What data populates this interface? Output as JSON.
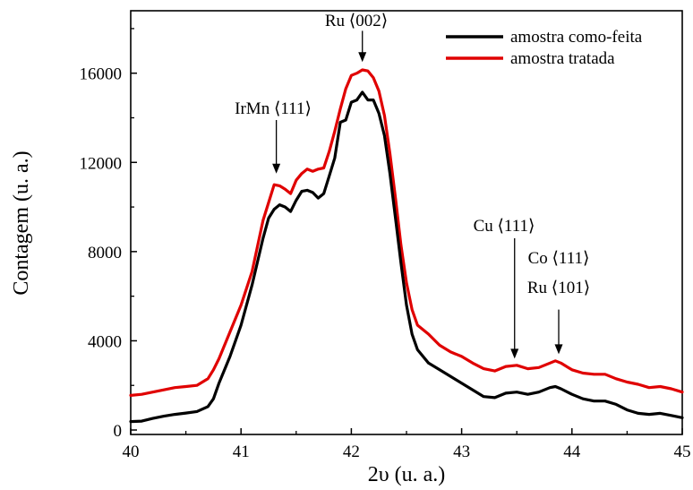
{
  "chart_data": {
    "type": "line",
    "title": "",
    "xlabel": "2υ (u. a.)",
    "ylabel": "Contagem (u. a.)",
    "xlim": [
      40,
      45
    ],
    "ylim": [
      -200,
      18800
    ],
    "x_ticks": [
      40,
      41,
      42,
      43,
      44,
      45
    ],
    "x_tick_labels": [
      "40",
      "41",
      "42",
      "43",
      "44",
      "45"
    ],
    "y_ticks": [
      0,
      4000,
      8000,
      12000,
      16000
    ],
    "y_tick_labels": [
      "0",
      "4000",
      "8000",
      "12000",
      "16000"
    ],
    "grid": false,
    "legend_position": "top-right",
    "series": [
      {
        "name": "amostra como-feita",
        "color": "#000000",
        "points": [
          [
            40.0,
            380
          ],
          [
            40.1,
            400
          ],
          [
            40.2,
            520
          ],
          [
            40.3,
            620
          ],
          [
            40.4,
            700
          ],
          [
            40.5,
            760
          ],
          [
            40.6,
            830
          ],
          [
            40.7,
            1050
          ],
          [
            40.75,
            1400
          ],
          [
            40.8,
            2100
          ],
          [
            40.9,
            3300
          ],
          [
            41.0,
            4700
          ],
          [
            41.1,
            6500
          ],
          [
            41.2,
            8600
          ],
          [
            41.25,
            9500
          ],
          [
            41.3,
            9900
          ],
          [
            41.35,
            10100
          ],
          [
            41.4,
            10000
          ],
          [
            41.45,
            9800
          ],
          [
            41.5,
            10300
          ],
          [
            41.55,
            10700
          ],
          [
            41.6,
            10750
          ],
          [
            41.65,
            10650
          ],
          [
            41.7,
            10400
          ],
          [
            41.75,
            10600
          ],
          [
            41.8,
            11400
          ],
          [
            41.85,
            12200
          ],
          [
            41.9,
            13800
          ],
          [
            41.95,
            13900
          ],
          [
            42.0,
            14700
          ],
          [
            42.05,
            14800
          ],
          [
            42.1,
            15150
          ],
          [
            42.15,
            14800
          ],
          [
            42.2,
            14800
          ],
          [
            42.25,
            14200
          ],
          [
            42.3,
            13200
          ],
          [
            42.35,
            11500
          ],
          [
            42.4,
            9500
          ],
          [
            42.45,
            7500
          ],
          [
            42.5,
            5600
          ],
          [
            42.55,
            4300
          ],
          [
            42.6,
            3600
          ],
          [
            42.7,
            3000
          ],
          [
            42.8,
            2700
          ],
          [
            42.9,
            2400
          ],
          [
            43.0,
            2100
          ],
          [
            43.1,
            1800
          ],
          [
            43.2,
            1500
          ],
          [
            43.3,
            1450
          ],
          [
            43.4,
            1650
          ],
          [
            43.5,
            1700
          ],
          [
            43.6,
            1600
          ],
          [
            43.7,
            1700
          ],
          [
            43.8,
            1900
          ],
          [
            43.85,
            1950
          ],
          [
            43.9,
            1850
          ],
          [
            44.0,
            1600
          ],
          [
            44.1,
            1400
          ],
          [
            44.2,
            1300
          ],
          [
            44.3,
            1300
          ],
          [
            44.4,
            1150
          ],
          [
            44.5,
            900
          ],
          [
            44.6,
            750
          ],
          [
            44.7,
            700
          ],
          [
            44.8,
            750
          ],
          [
            44.9,
            650
          ],
          [
            45.0,
            550
          ]
        ]
      },
      {
        "name": "amostra tratada",
        "color": "#e00000",
        "points": [
          [
            40.0,
            1550
          ],
          [
            40.1,
            1600
          ],
          [
            40.2,
            1700
          ],
          [
            40.3,
            1800
          ],
          [
            40.4,
            1900
          ],
          [
            40.5,
            1950
          ],
          [
            40.6,
            2000
          ],
          [
            40.7,
            2300
          ],
          [
            40.75,
            2700
          ],
          [
            40.8,
            3200
          ],
          [
            40.9,
            4400
          ],
          [
            41.0,
            5600
          ],
          [
            41.1,
            7100
          ],
          [
            41.2,
            9400
          ],
          [
            41.25,
            10200
          ],
          [
            41.3,
            11000
          ],
          [
            41.35,
            10950
          ],
          [
            41.4,
            10800
          ],
          [
            41.45,
            10600
          ],
          [
            41.5,
            11200
          ],
          [
            41.55,
            11500
          ],
          [
            41.6,
            11700
          ],
          [
            41.65,
            11600
          ],
          [
            41.7,
            11700
          ],
          [
            41.75,
            11750
          ],
          [
            41.8,
            12500
          ],
          [
            41.85,
            13400
          ],
          [
            41.9,
            14400
          ],
          [
            41.95,
            15300
          ],
          [
            42.0,
            15900
          ],
          [
            42.05,
            16000
          ],
          [
            42.1,
            16150
          ],
          [
            42.15,
            16100
          ],
          [
            42.2,
            15800
          ],
          [
            42.25,
            15200
          ],
          [
            42.3,
            14100
          ],
          [
            42.35,
            12400
          ],
          [
            42.4,
            10400
          ],
          [
            42.45,
            8300
          ],
          [
            42.5,
            6600
          ],
          [
            42.55,
            5400
          ],
          [
            42.6,
            4700
          ],
          [
            42.7,
            4300
          ],
          [
            42.8,
            3800
          ],
          [
            42.9,
            3500
          ],
          [
            43.0,
            3300
          ],
          [
            43.1,
            3000
          ],
          [
            43.2,
            2750
          ],
          [
            43.3,
            2650
          ],
          [
            43.4,
            2850
          ],
          [
            43.5,
            2900
          ],
          [
            43.6,
            2750
          ],
          [
            43.7,
            2800
          ],
          [
            43.8,
            3000
          ],
          [
            43.85,
            3100
          ],
          [
            43.9,
            3000
          ],
          [
            44.0,
            2700
          ],
          [
            44.1,
            2550
          ],
          [
            44.2,
            2500
          ],
          [
            44.3,
            2500
          ],
          [
            44.4,
            2300
          ],
          [
            44.5,
            2150
          ],
          [
            44.6,
            2050
          ],
          [
            44.7,
            1900
          ],
          [
            44.8,
            1950
          ],
          [
            44.9,
            1850
          ],
          [
            45.0,
            1700
          ]
        ]
      }
    ],
    "annotations": [
      {
        "label": "IrMn ⟨111⟩",
        "x": 41.32,
        "arrow_top_y": 13900,
        "arrow_tip_y": 11500
      },
      {
        "label": "Ru ⟨002⟩",
        "x": 42.1,
        "arrow_top_y": 17900,
        "arrow_tip_y": 16500
      },
      {
        "label": "Cu ⟨111⟩",
        "x": 43.48,
        "arrow_top_y": 8600,
        "arrow_tip_y": 3200
      },
      {
        "label": "Co ⟨111⟩",
        "x": 43.88,
        "arrow_top_y": null,
        "arrow_tip_y": null
      },
      {
        "label": "Ru ⟨101⟩",
        "x": 43.88,
        "arrow_top_y": 5400,
        "arrow_tip_y": 3400
      }
    ]
  }
}
